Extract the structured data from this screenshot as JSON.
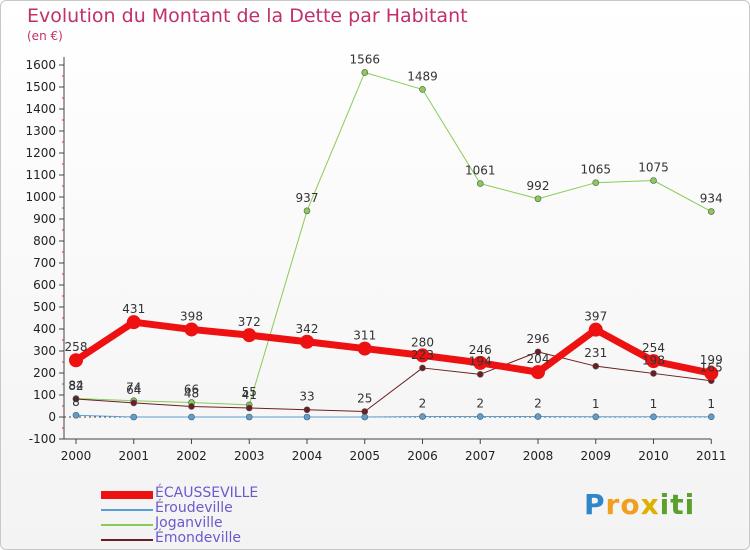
{
  "title": "Evolution du Montant de la Dette par Habitant",
  "subtitle": "(en €)",
  "logo": {
    "text": "Proxiti",
    "letters": [
      {
        "ch": "P",
        "color": "#2f86c9"
      },
      {
        "ch": "r",
        "color": "#f0a020"
      },
      {
        "ch": "o",
        "color": "#f0a020"
      },
      {
        "ch": "x",
        "color": "#e0b000"
      },
      {
        "ch": "i",
        "color": "#5aa02c"
      },
      {
        "ch": "t",
        "color": "#5aa02c"
      },
      {
        "ch": "i",
        "color": "#5aa02c"
      }
    ]
  },
  "chart_data": {
    "type": "line",
    "title": "Evolution du Montant de la Dette par Habitant",
    "subtitle": "(en €)",
    "categories": [
      "2000",
      "2001",
      "2002",
      "2003",
      "2004",
      "2005",
      "2006",
      "2007",
      "2008",
      "2009",
      "2010",
      "2011"
    ],
    "ylim": [
      -100,
      1600
    ],
    "yticks": [
      -100,
      0,
      100,
      200,
      300,
      400,
      500,
      600,
      700,
      800,
      900,
      1000,
      1100,
      1200,
      1300,
      1400,
      1500,
      1600
    ],
    "grid": false,
    "legend_position": "bottom-left",
    "series": [
      {
        "name": "ÉCAUSSEVILLE",
        "color": "#ee1111",
        "width": 7,
        "marker": 7,
        "values": [
          258,
          431,
          398,
          372,
          342,
          311,
          280,
          246,
          204,
          397,
          254,
          199
        ],
        "labels": [
          "258",
          "431",
          "398",
          "372",
          "342",
          "311",
          "280",
          "246",
          "204",
          "397",
          "254",
          "199"
        ]
      },
      {
        "name": "Éroudeville",
        "color": "#5a9fd4",
        "width": 1,
        "marker": 3,
        "values": [
          8,
          0,
          0,
          0,
          0,
          0,
          2,
          2,
          2,
          1,
          1,
          1
        ],
        "labels": [
          "8",
          "",
          "",
          "",
          "",
          "",
          "2",
          "2",
          "2",
          "1",
          "1",
          "1"
        ]
      },
      {
        "name": "Joganville",
        "color": "#88cc55",
        "width": 1,
        "marker": 3,
        "values": [
          84,
          74,
          66,
          55,
          937,
          1566,
          1489,
          1061,
          992,
          1065,
          1075,
          934
        ],
        "labels": [
          "84",
          "74",
          "66",
          "55",
          "937",
          "1566",
          "1489",
          "1061",
          "992",
          "1065",
          "1075",
          "934"
        ]
      },
      {
        "name": "Émondeville",
        "color": "#6b1f22",
        "width": 1,
        "marker": 3,
        "values": [
          82,
          64,
          48,
          41,
          33,
          25,
          223,
          194,
          296,
          231,
          198,
          165
        ],
        "labels": [
          "82",
          "64",
          "48",
          "41",
          "33",
          "25",
          "223",
          "194",
          "296",
          "231",
          "198",
          "165"
        ]
      }
    ]
  }
}
